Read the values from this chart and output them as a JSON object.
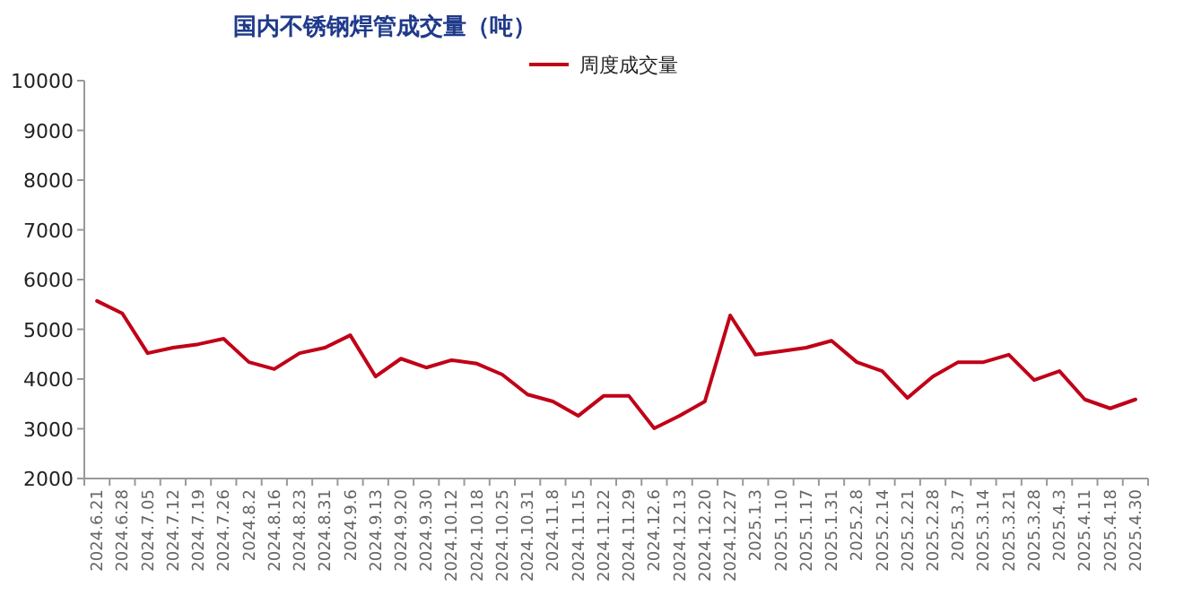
{
  "chart_data": {
    "type": "line",
    "title": "国内不锈钢焊管成交量（吨）",
    "categories": [
      "2024.6.21",
      "2024.6.28",
      "2024.7.05",
      "2024.7.12",
      "2024.7.19",
      "2024.7.26",
      "2024.8.2",
      "2024.8.16",
      "2024.8.23",
      "2024.8.31",
      "2024.9.6",
      "2024.9.13",
      "2024.9.20",
      "2024.9.30",
      "2024.10.12",
      "2024.10.18",
      "2024.10.25",
      "2024.10.31",
      "2024.11.8",
      "2024.11.15",
      "2024.11.22",
      "2024.11.29",
      "2024.12.6",
      "2024.12.13",
      "2024.12.20",
      "2024.12.27",
      "2025.1.3",
      "2025.1.10",
      "2025.1.17",
      "2025.1.31",
      "2025.2.8",
      "2025.2.14",
      "2025.2.21",
      "2025.2.28",
      "2025.3.7",
      "2025.3.14",
      "2025.3.21",
      "2025.3.28",
      "2025.4.3",
      "2025.4.11",
      "2025.4.18",
      "2025.4.30"
    ],
    "series": [
      {
        "name": "周度成交量",
        "color": "#c00018",
        "values": [
          5570,
          5320,
          4520,
          4630,
          4700,
          4810,
          4340,
          4200,
          4520,
          4630,
          4880,
          4050,
          4410,
          4230,
          4380,
          4310,
          4090,
          3690,
          3550,
          3260,
          3660,
          3660,
          3010,
          3260,
          3550,
          5280,
          4490,
          4560,
          4630,
          4770,
          4340,
          4160,
          3620,
          4050,
          4340,
          4340,
          4490,
          3980,
          4160,
          3590,
          3410,
          3590
        ]
      }
    ],
    "ylim": [
      2000,
      10000
    ],
    "yticks": [
      2000,
      3000,
      4000,
      5000,
      6000,
      7000,
      8000,
      9000,
      10000
    ],
    "grid": false,
    "legend": "top",
    "marker": "none",
    "line_style": "solid"
  }
}
